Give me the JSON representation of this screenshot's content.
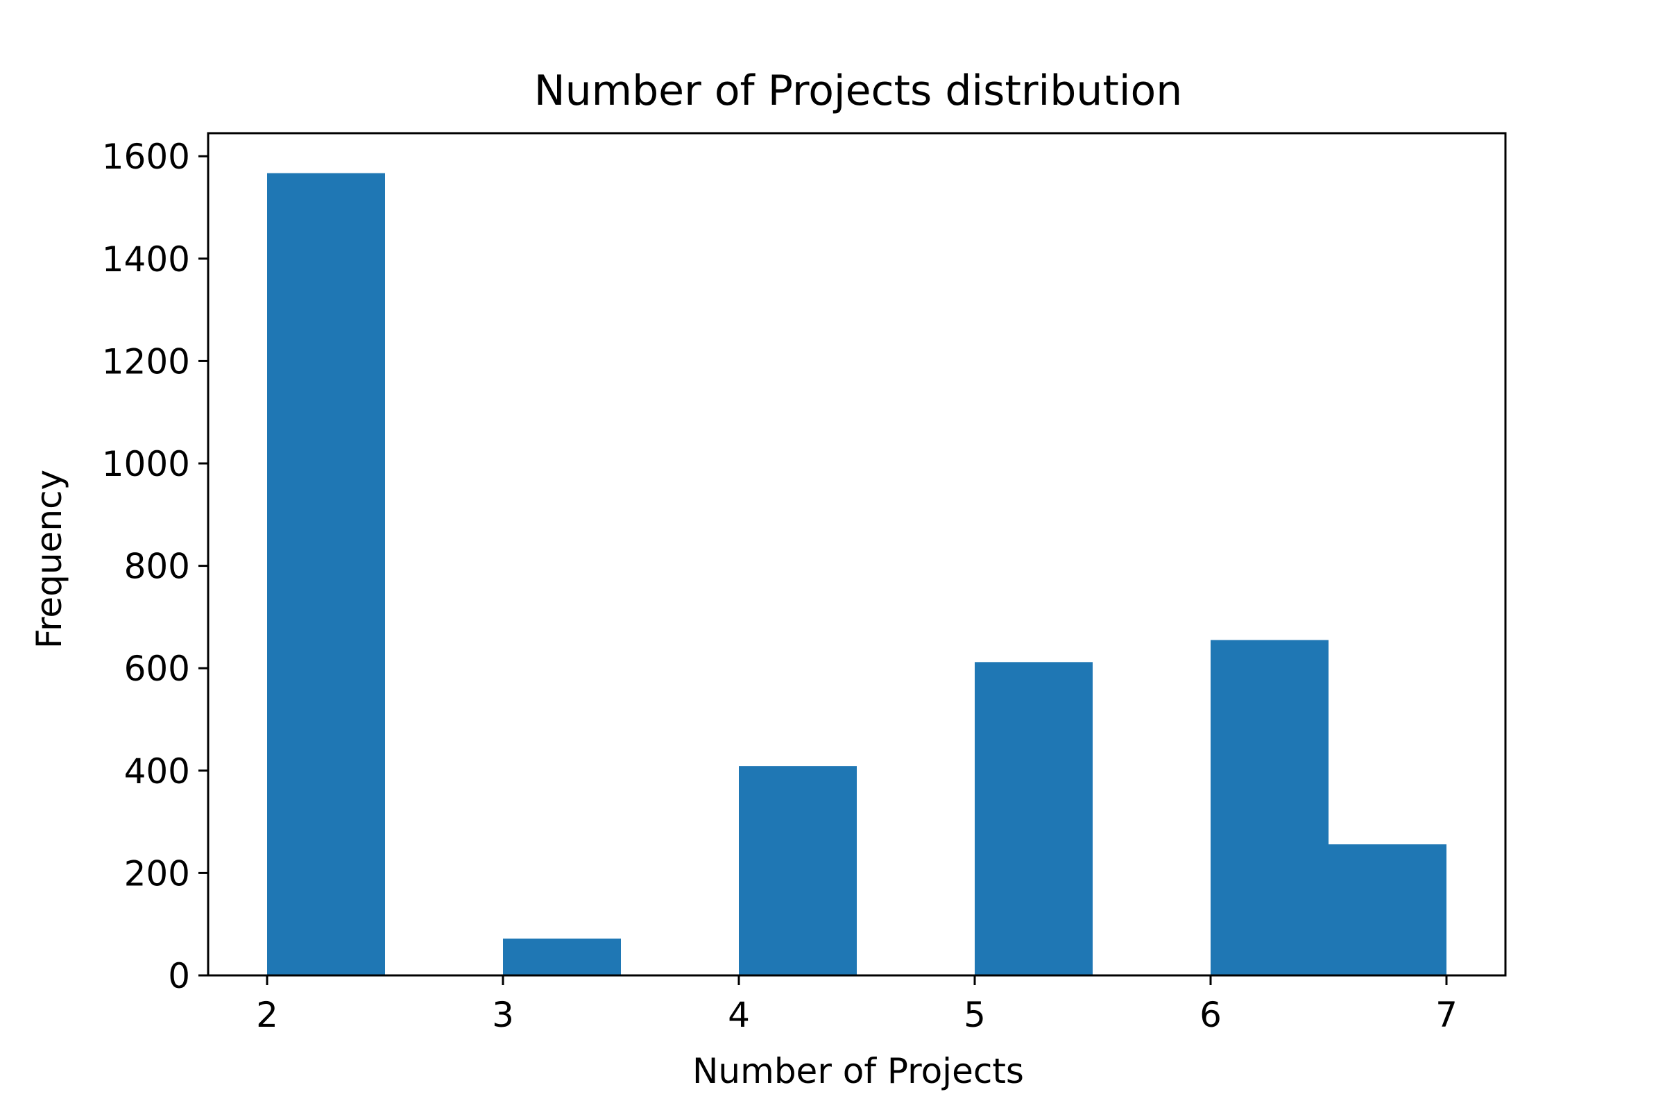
{
  "chart_data": {
    "type": "bar",
    "title": "Number of Projects distribution",
    "xlabel": "Number of Projects",
    "ylabel": "Frequency",
    "bins": [
      {
        "start": 2.0,
        "end": 2.5,
        "value": 1567
      },
      {
        "start": 2.5,
        "end": 3.0,
        "value": 0
      },
      {
        "start": 3.0,
        "end": 3.5,
        "value": 72
      },
      {
        "start": 3.5,
        "end": 4.0,
        "value": 0
      },
      {
        "start": 4.0,
        "end": 4.5,
        "value": 409
      },
      {
        "start": 4.5,
        "end": 5.0,
        "value": 0
      },
      {
        "start": 5.0,
        "end": 5.5,
        "value": 612
      },
      {
        "start": 5.5,
        "end": 6.0,
        "value": 0
      },
      {
        "start": 6.0,
        "end": 6.5,
        "value": 655
      },
      {
        "start": 6.5,
        "end": 7.0,
        "value": 256
      }
    ],
    "xlim": [
      1.75,
      7.25
    ],
    "ylim": [
      0,
      1645
    ],
    "x_ticks": [
      2,
      3,
      4,
      5,
      6,
      7
    ],
    "y_ticks": [
      0,
      200,
      400,
      600,
      800,
      1000,
      1200,
      1400,
      1600
    ],
    "bar_color": "#1f77b4",
    "grid": false,
    "legend": "none"
  }
}
